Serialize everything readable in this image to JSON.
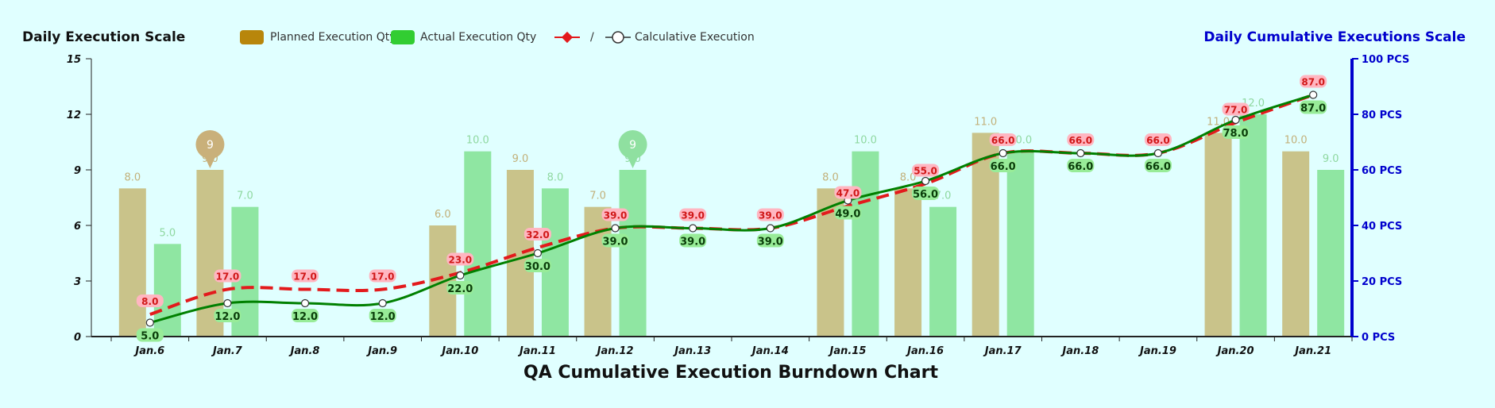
{
  "chart_data": {
    "type": "bar",
    "title": "QA Cumulative Execution Burndown Chart",
    "y_left_label": "Daily Execution Scale",
    "y_right_label": "Daily Cumulative Executions Scale",
    "y_left_range": [
      0,
      15
    ],
    "y_left_ticks": [
      "0",
      "3",
      "6",
      "9",
      "12",
      "15"
    ],
    "y_right_range": [
      0,
      100
    ],
    "y_right_ticks": [
      "0 PCS",
      "20 PCS",
      "40 PCS",
      "60 PCS",
      "80 PCS",
      "100 PCS"
    ],
    "categories": [
      "Jan.6",
      "Jan.7",
      "Jan.8",
      "Jan.9",
      "Jan.10",
      "Jan.11",
      "Jan.12",
      "Jan.13",
      "Jan.14",
      "Jan.15",
      "Jan.16",
      "Jan.17",
      "Jan.18",
      "Jan.19",
      "Jan.20",
      "Jan.21"
    ],
    "legend_placement": "top-left",
    "legend": {
      "planned": "Planned Execution Qty",
      "actual": "Actual Execution Qty",
      "slash": "/",
      "cumulative": "Calculative Execution"
    },
    "series": [
      {
        "name": "Planned Execution Qty",
        "type": "bar",
        "axis": "left",
        "color": "#b8860b",
        "values": [
          8,
          9,
          null,
          null,
          6,
          9,
          7,
          null,
          null,
          8,
          8,
          11,
          null,
          null,
          11,
          10
        ],
        "labels": [
          "8.0",
          "9.0",
          "",
          "",
          "6.0",
          "9.0",
          "7.0",
          "",
          "",
          "8.0",
          "8.0",
          "11.0",
          "",
          "",
          "11.0",
          "10.0"
        ]
      },
      {
        "name": "Actual Execution Qty",
        "type": "bar",
        "axis": "left",
        "color": "#32cd32",
        "values": [
          5,
          7,
          null,
          null,
          10,
          8,
          9,
          null,
          null,
          10,
          7,
          10,
          null,
          null,
          12,
          9
        ],
        "labels": [
          "5.0",
          "7.0",
          "",
          "",
          "10.0",
          "8.0",
          "9.0",
          "",
          "",
          "10.0",
          "7.0",
          "10.0",
          "",
          "",
          "12.0",
          "9.0"
        ]
      },
      {
        "type": "line",
        "axis": "right",
        "color": "#e31a1c",
        "values": [
          8,
          17,
          17,
          17,
          23,
          32,
          39,
          39,
          39,
          47,
          55,
          66,
          66,
          66,
          77,
          87
        ],
        "labels": [
          "8.0",
          "17.0",
          "17.0",
          "17.0",
          "23.0",
          "32.0",
          "39.0",
          "39.0",
          "39.0",
          "47.0",
          "55.0",
          "66.0",
          "66.0",
          "66.0",
          "77.0",
          "87.0"
        ]
      },
      {
        "name": "Calculative Execution",
        "type": "line",
        "axis": "right",
        "color": "#008000",
        "values": [
          5,
          12,
          12,
          12,
          22,
          30,
          39,
          39,
          39,
          49,
          56,
          66,
          66,
          66,
          78,
          87
        ],
        "labels": [
          "5.0",
          "12.0",
          "12.0",
          "12.0",
          "22.0",
          "30.0",
          "39.0",
          "39.0",
          "39.0",
          "49.0",
          "56.0",
          "66.0",
          "66.0",
          "66.0",
          "78.0",
          "87.0"
        ]
      }
    ],
    "markers": [
      {
        "series": "planned",
        "index": 1,
        "label": "9"
      },
      {
        "series": "actual",
        "index": 6,
        "label": "9"
      }
    ],
    "grid": false
  }
}
